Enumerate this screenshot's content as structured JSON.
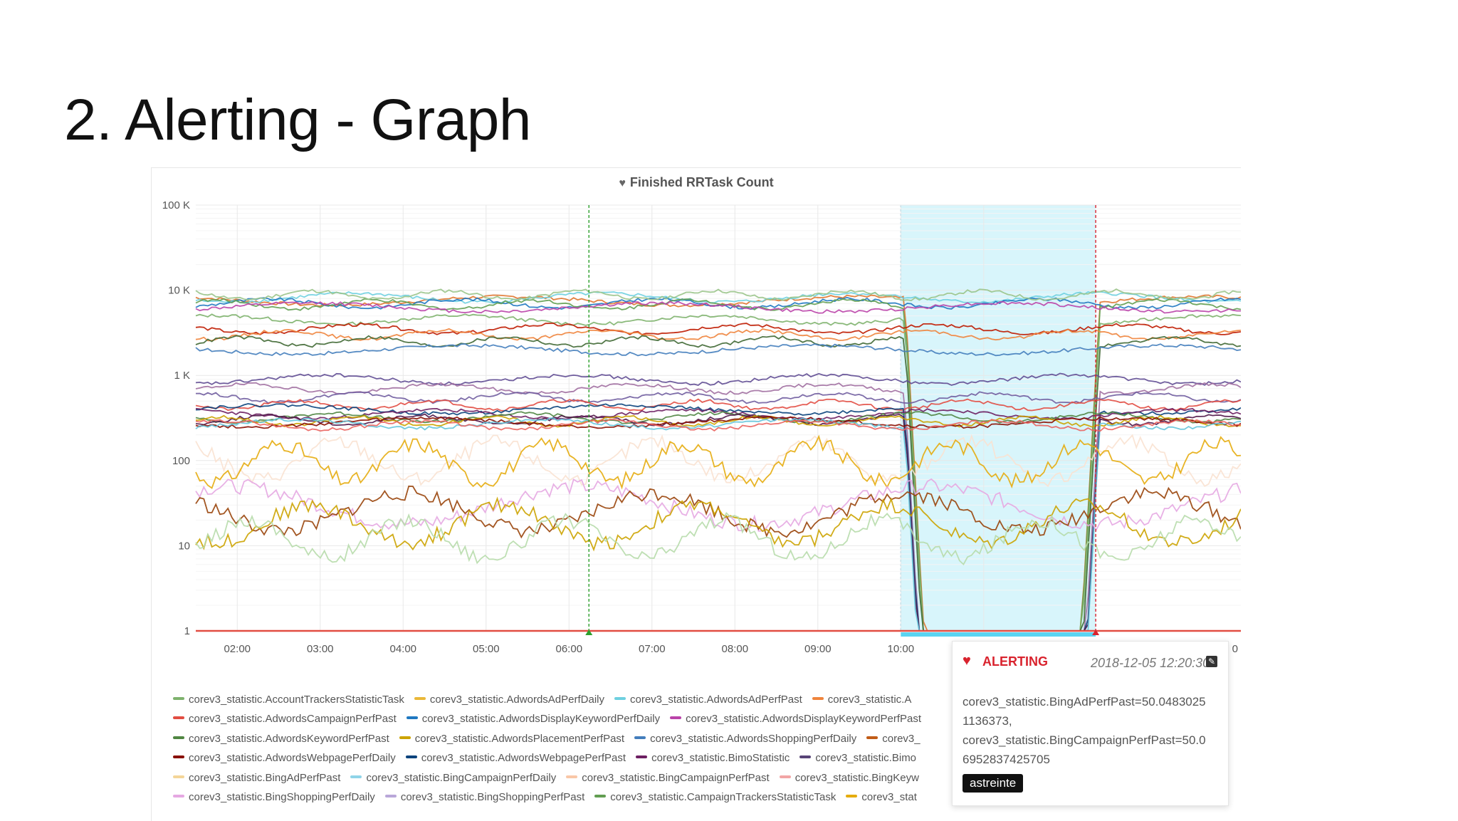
{
  "slide": {
    "title": "2. Alerting - Graph"
  },
  "panel": {
    "title": "Finished RRTask Count",
    "title_icon": "heart-icon"
  },
  "chart_data": {
    "type": "line",
    "title": "Finished RRTask Count",
    "y_scale": "log",
    "ylim": [
      1,
      100000
    ],
    "y_ticks": [
      "1",
      "10",
      "100",
      "1 K",
      "10 K",
      "100 K"
    ],
    "x_ticks": [
      "02:00",
      "03:00",
      "04:00",
      "05:00",
      "06:00",
      "07:00",
      "08:00",
      "09:00",
      "10:00",
      "0"
    ],
    "x_range_hours": [
      1.5,
      14.1
    ],
    "grid": true,
    "annotations": [
      {
        "kind": "ok-marker",
        "x_hour": 6.24,
        "color": "#2ca02c"
      },
      {
        "kind": "alert-region",
        "x_start_hour": 10.0,
        "x_end_hour": 12.35,
        "color": "#d8f5fb"
      },
      {
        "kind": "alert-marker",
        "x_hour": 12.35,
        "color": "#d9232e"
      }
    ],
    "threshold_line": {
      "value": 1,
      "color": "#e24d42"
    },
    "series": [
      {
        "base": 7500,
        "color": "#e0752d"
      },
      {
        "base": 8200,
        "color": "#6ed0e0"
      },
      {
        "base": 7000,
        "color": "#1f78c1"
      },
      {
        "base": 6800,
        "color": "#629e51"
      },
      {
        "base": 8800,
        "color": "#9ac48a"
      },
      {
        "base": 6300,
        "color": "#ba43a9"
      },
      {
        "base": 4500,
        "color": "#7eb26d"
      },
      {
        "base": 3500,
        "color": "#bf1b00"
      },
      {
        "base": 3000,
        "color": "#ef843c"
      },
      {
        "base": 2500,
        "color": "#3f6833"
      },
      {
        "base": 2000,
        "color": "#447ebc"
      },
      {
        "base": 900,
        "color": "#614d93"
      },
      {
        "base": 700,
        "color": "#a16fa1"
      },
      {
        "base": 550,
        "color": "#705da0"
      },
      {
        "base": 450,
        "color": "#e24d42"
      },
      {
        "base": 400,
        "color": "#0a437c"
      },
      {
        "base": 350,
        "color": "#6d1f62"
      },
      {
        "base": 320,
        "color": "#508642"
      },
      {
        "base": 300,
        "color": "#511749"
      },
      {
        "base": 290,
        "color": "#cca300"
      },
      {
        "base": 280,
        "color": "#890f02"
      },
      {
        "base": 270,
        "color": "#65c5db"
      },
      {
        "base": 260,
        "color": "#ea6460"
      },
      {
        "base": 100,
        "color": "#f9e2d2"
      },
      {
        "base": 95,
        "color": "#e5ac0e"
      },
      {
        "base": 30,
        "color": "#e5a8e2"
      },
      {
        "base": 25,
        "color": "#99440a"
      },
      {
        "base": 18,
        "color": "#cca300"
      },
      {
        "base": 12,
        "color": "#b7dbab"
      }
    ]
  },
  "legend": {
    "rows": [
      [
        {
          "label": "corev3_statistic.AccountTrackersStatisticTask",
          "color": "#7eb26d"
        },
        {
          "label": "corev3_statistic.AdwordsAdPerfDaily",
          "color": "#eab839"
        },
        {
          "label": "corev3_statistic.AdwordsAdPerfPast",
          "color": "#6ed0e0"
        },
        {
          "label": "corev3_statistic.A",
          "color": "#ef843c"
        }
      ],
      [
        {
          "label": "corev3_statistic.AdwordsCampaignPerfPast",
          "color": "#e24d42"
        },
        {
          "label": "corev3_statistic.AdwordsDisplayKeywordPerfDaily",
          "color": "#1f78c1"
        },
        {
          "label": "corev3_statistic.AdwordsDisplayKeywordPerfPast",
          "color": "#ba43a9"
        }
      ],
      [
        {
          "label": "corev3_statistic.AdwordsKeywordPerfPast",
          "color": "#508642"
        },
        {
          "label": "corev3_statistic.AdwordsPlacementPerfPast",
          "color": "#cca300"
        },
        {
          "label": "corev3_statistic.AdwordsShoppingPerfDaily",
          "color": "#447ebc"
        },
        {
          "label": "corev3_",
          "color": "#c15c17"
        }
      ],
      [
        {
          "label": "corev3_statistic.AdwordsWebpagePerfDaily",
          "color": "#890f02"
        },
        {
          "label": "corev3_statistic.AdwordsWebpagePerfPast",
          "color": "#0a437c"
        },
        {
          "label": "corev3_statistic.BimoStatistic",
          "color": "#6d1f62"
        },
        {
          "label": "corev3_statistic.Bimo",
          "color": "#584477"
        }
      ],
      [
        {
          "label": "corev3_statistic.BingAdPerfPast",
          "color": "#f4d598"
        },
        {
          "label": "corev3_statistic.BingCampaignPerfDaily",
          "color": "#8fd4e8"
        },
        {
          "label": "corev3_statistic.BingCampaignPerfPast",
          "color": "#f9c7a7"
        },
        {
          "label": "corev3_statistic.BingKeyw",
          "color": "#f2a5a5"
        }
      ],
      [
        {
          "label": "corev3_statistic.BingShoppingPerfDaily",
          "color": "#e5a8e2"
        },
        {
          "label": "corev3_statistic.BingShoppingPerfPast",
          "color": "#b9a7d9"
        },
        {
          "label": "corev3_statistic.CampaignTrackersStatisticTask",
          "color": "#629e51"
        },
        {
          "label": "corev3_stat",
          "color": "#e5ac0e"
        }
      ]
    ]
  },
  "tooltip": {
    "state": "ALERTING",
    "time": "2018-12-05 12:20:30",
    "lines": [
      "corev3_statistic.BingAdPerfPast=50.0483025",
      "1136373,",
      "corev3_statistic.BingCampaignPerfPast=50.0",
      "6952837425705"
    ],
    "tag": "astreinte"
  }
}
